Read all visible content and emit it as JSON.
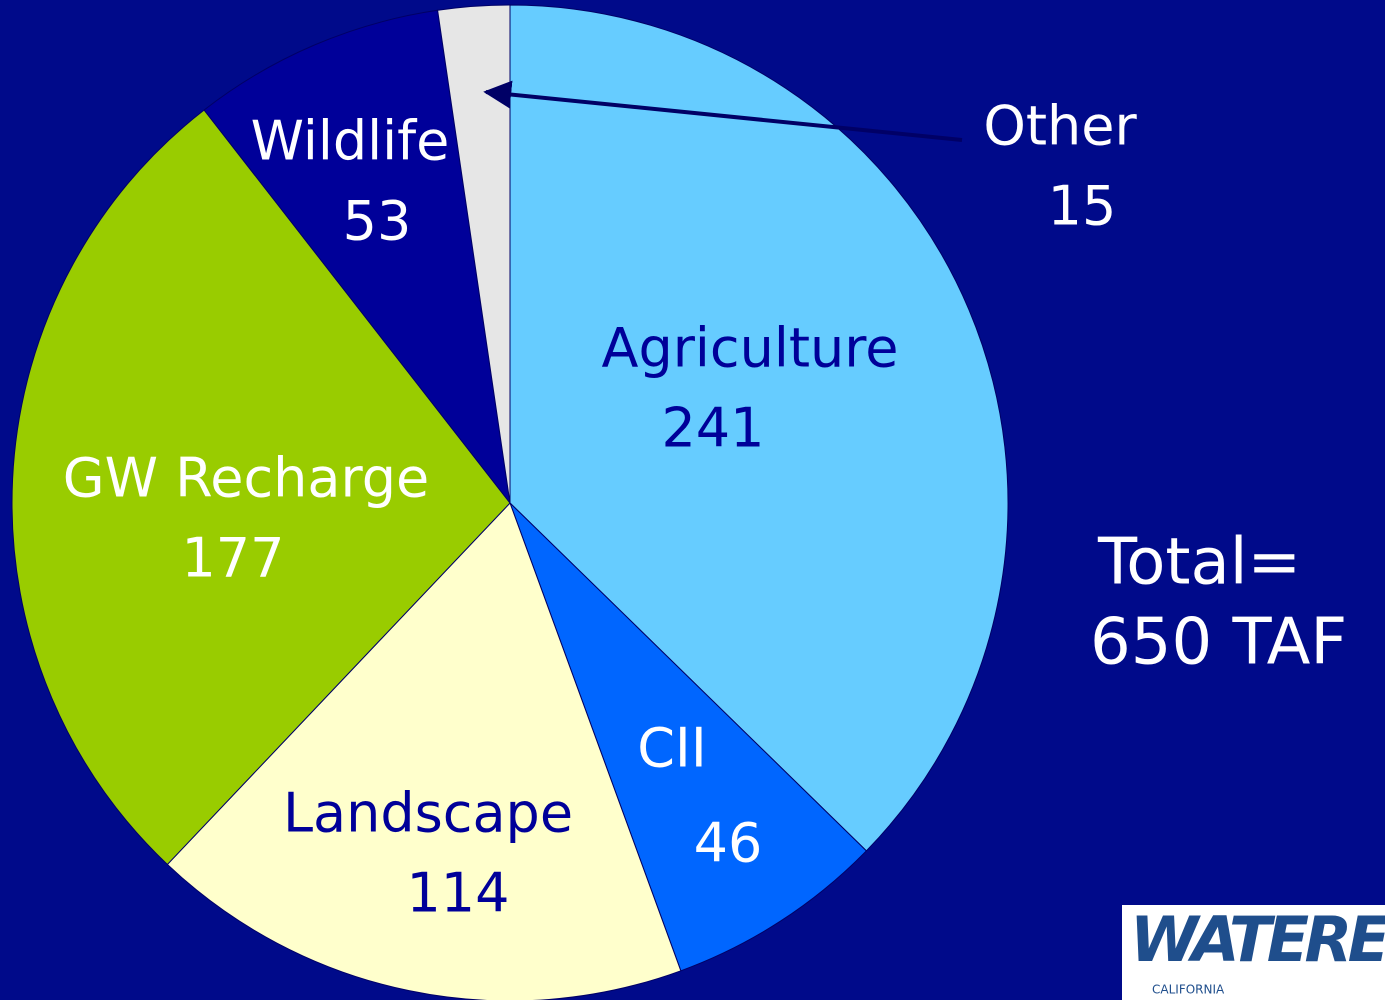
{
  "chart_data": {
    "type": "pie",
    "categories": [
      "Agriculture",
      "CII",
      "Landscape",
      "GW Recharge",
      "Wildlife",
      "Other"
    ],
    "values": [
      241,
      46,
      114,
      177,
      53,
      15
    ],
    "colors": [
      "#66ccff",
      "#0066ff",
      "#ffffcc",
      "#99cc00",
      "#000099",
      "#e6e6e6"
    ],
    "label_colors": [
      "#000099",
      "#ffffff",
      "#000099",
      "#ffffff",
      "#ffffff",
      "#ffffff"
    ],
    "start_angle": 0,
    "direction": "clockwise",
    "annotations": [
      "Total=",
      "650 TAF"
    ],
    "logo": {
      "text": "WATERE",
      "subtext": "CALIFORNIA"
    }
  }
}
